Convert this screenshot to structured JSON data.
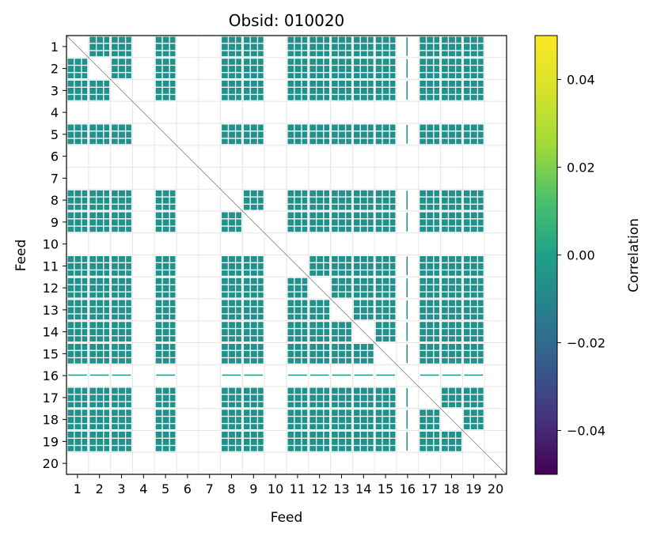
{
  "chart_data": {
    "type": "heatmap",
    "title": "Obsid: 010020",
    "xlabel": "Feed",
    "ylabel": "Feed",
    "x_ticks": [
      "1",
      "2",
      "3",
      "4",
      "5",
      "6",
      "7",
      "8",
      "9",
      "10",
      "11",
      "12",
      "13",
      "14",
      "15",
      "16",
      "17",
      "18",
      "19",
      "20"
    ],
    "y_ticks": [
      "1",
      "2",
      "3",
      "4",
      "5",
      "6",
      "7",
      "8",
      "9",
      "10",
      "11",
      "12",
      "13",
      "14",
      "15",
      "16",
      "17",
      "18",
      "19",
      "20"
    ],
    "colorbar": {
      "label": "Correlation",
      "range": [
        -0.05,
        0.05
      ],
      "ticks": [
        0.04,
        0.02,
        0.0,
        -0.02,
        -0.04
      ],
      "tick_labels": [
        "0.04",
        "0.02",
        "0.00",
        "−0.02",
        "−0.04"
      ],
      "colormap": "viridis"
    },
    "fill_color": "#21918c",
    "dominant_value": 0.0,
    "active_feeds": [
      1,
      2,
      3,
      5,
      8,
      9,
      11,
      12,
      13,
      14,
      15,
      16,
      17,
      18,
      19
    ],
    "sparse_feeds": [
      16
    ],
    "empty_feeds": [
      4,
      6,
      7,
      10,
      20
    ],
    "grid": true
  }
}
